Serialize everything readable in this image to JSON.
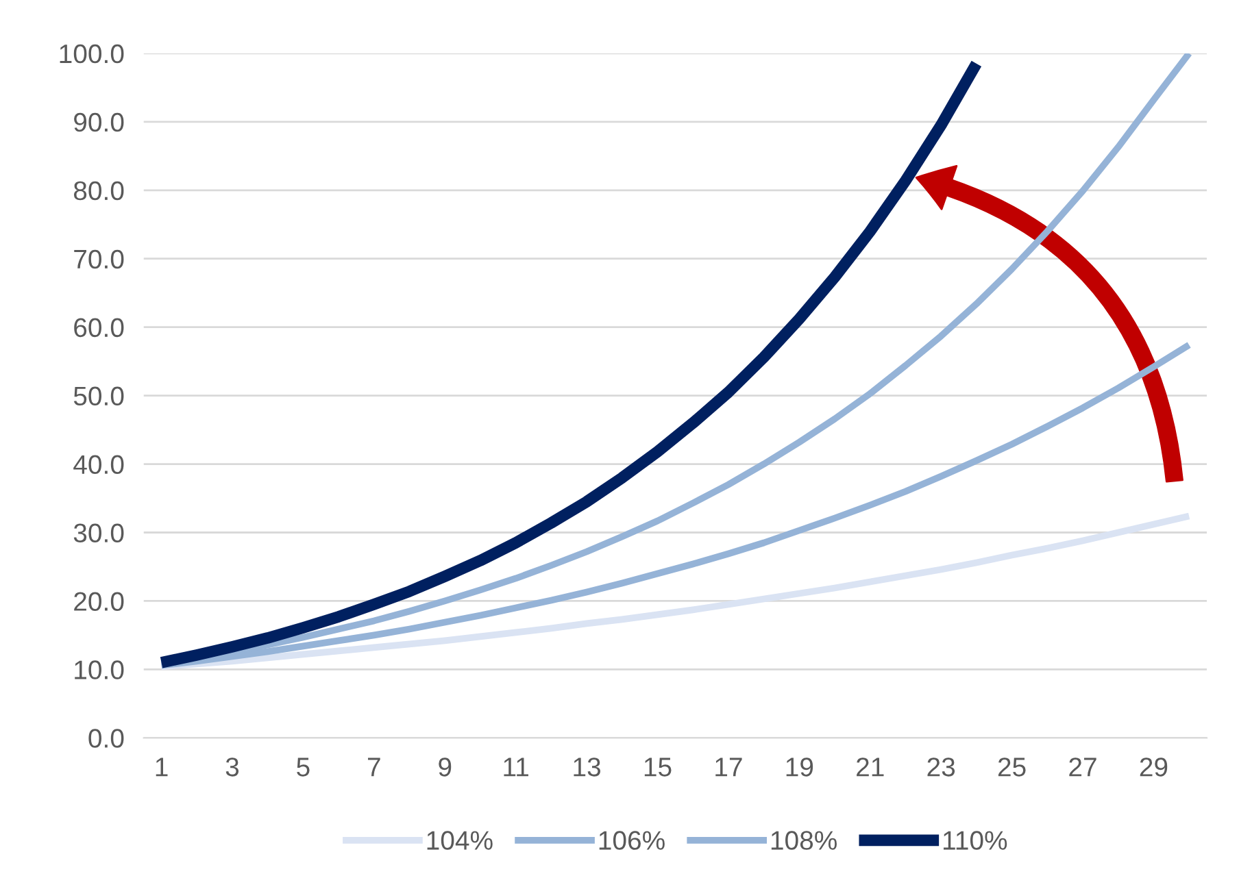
{
  "chart_data": {
    "type": "line",
    "x": [
      1,
      2,
      3,
      4,
      5,
      6,
      7,
      8,
      9,
      10,
      11,
      12,
      13,
      14,
      15,
      16,
      17,
      18,
      19,
      20,
      21,
      22,
      23,
      24,
      25,
      26,
      27,
      28,
      29,
      30
    ],
    "series": [
      {
        "name": "104%",
        "color": "#dae3f3",
        "values": [
          10.4,
          10.8,
          11.2,
          11.7,
          12.2,
          12.7,
          13.2,
          13.7,
          14.2,
          14.8,
          15.4,
          16.0,
          16.7,
          17.3,
          18.0,
          18.7,
          19.5,
          20.3,
          21.1,
          21.9,
          22.8,
          23.7,
          24.6,
          25.6,
          26.7,
          27.7,
          28.8,
          30.0,
          31.2,
          32.4
        ]
      },
      {
        "name": "106%",
        "color": "#95b3d7",
        "values": [
          10.6,
          11.2,
          11.9,
          12.6,
          13.4,
          14.2,
          15.0,
          15.9,
          16.9,
          17.9,
          19.0,
          20.1,
          21.3,
          22.6,
          24.0,
          25.4,
          26.9,
          28.5,
          30.3,
          32.1,
          34.0,
          36.0,
          38.2,
          40.5,
          42.9,
          45.5,
          48.2,
          51.1,
          54.2,
          57.4
        ]
      },
      {
        "name": "108%",
        "color": "#95b3d7",
        "values": [
          10.8,
          11.7,
          12.6,
          13.6,
          14.7,
          15.9,
          17.1,
          18.5,
          20.0,
          21.6,
          23.3,
          25.2,
          27.2,
          29.4,
          31.7,
          34.3,
          37.0,
          40.0,
          43.2,
          46.6,
          50.3,
          54.4,
          58.7,
          63.4,
          68.5,
          74.0,
          79.9,
          86.3,
          93.2,
          100.0
        ]
      },
      {
        "name": "110%",
        "color": "#002060",
        "values": [
          11.0,
          12.1,
          13.3,
          14.6,
          16.1,
          17.7,
          19.5,
          21.4,
          23.6,
          25.9,
          28.5,
          31.4,
          34.5,
          38.0,
          41.8,
          46.0,
          50.5,
          55.6,
          61.2,
          67.3,
          74.0,
          81.4,
          89.5,
          98.5,
          null,
          null,
          null,
          null,
          null,
          null
        ]
      }
    ],
    "xlim": [
      0.5,
      30.5
    ],
    "xticks": [
      1,
      3,
      5,
      7,
      9,
      11,
      13,
      15,
      17,
      19,
      21,
      23,
      25,
      27,
      29
    ],
    "ylim": [
      0,
      100
    ],
    "yticks": [
      {
        "value": 0,
        "label": "0.0"
      },
      {
        "value": 10,
        "label": "10.0"
      },
      {
        "value": 20,
        "label": "20.0"
      },
      {
        "value": 30,
        "label": "30.0"
      },
      {
        "value": 40,
        "label": "40.0"
      },
      {
        "value": 50,
        "label": "50.0"
      },
      {
        "value": 60,
        "label": "60.0"
      },
      {
        "value": 70,
        "label": "70.0"
      },
      {
        "value": 80,
        "label": "80.0"
      },
      {
        "value": 90,
        "label": "90.0"
      },
      {
        "value": 100,
        "label": "100.0"
      }
    ],
    "grid": "y",
    "legend": "bottom",
    "marker": "none",
    "line_style": "solid"
  }
}
